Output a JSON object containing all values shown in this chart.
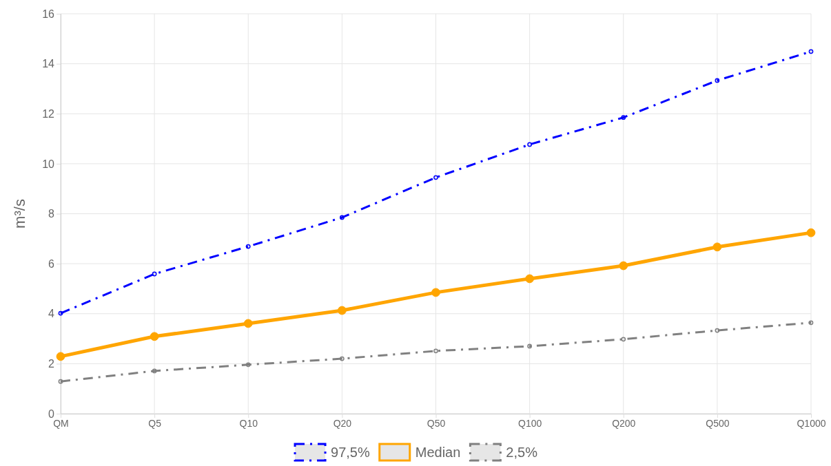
{
  "chart_data": {
    "type": "line",
    "ylabel": "m³/s",
    "categories": [
      "QM",
      "Q5",
      "Q10",
      "Q20",
      "Q50",
      "Q100",
      "Q200",
      "Q500",
      "Q1000"
    ],
    "series": [
      {
        "name": "97,5%",
        "color": "#0000ff",
        "line_style": "dashed",
        "values": [
          4.02,
          5.59,
          6.69,
          7.85,
          9.45,
          10.77,
          11.85,
          13.33,
          14.49
        ]
      },
      {
        "name": "Median",
        "color": "#ffa500",
        "line_style": "solid",
        "values": [
          2.29,
          3.09,
          3.61,
          4.13,
          4.85,
          5.4,
          5.92,
          6.67,
          7.24
        ]
      },
      {
        "name": "2,5%",
        "color": "#808080",
        "line_style": "dashed",
        "values": [
          1.29,
          1.71,
          1.96,
          2.2,
          2.51,
          2.7,
          2.98,
          3.33,
          3.64
        ]
      }
    ],
    "ylim": [
      0,
      16
    ],
    "yticks": [
      0,
      2,
      4,
      6,
      8,
      10,
      12,
      14,
      16
    ],
    "grid": true,
    "legend": "bottom",
    "marker": "circle"
  }
}
